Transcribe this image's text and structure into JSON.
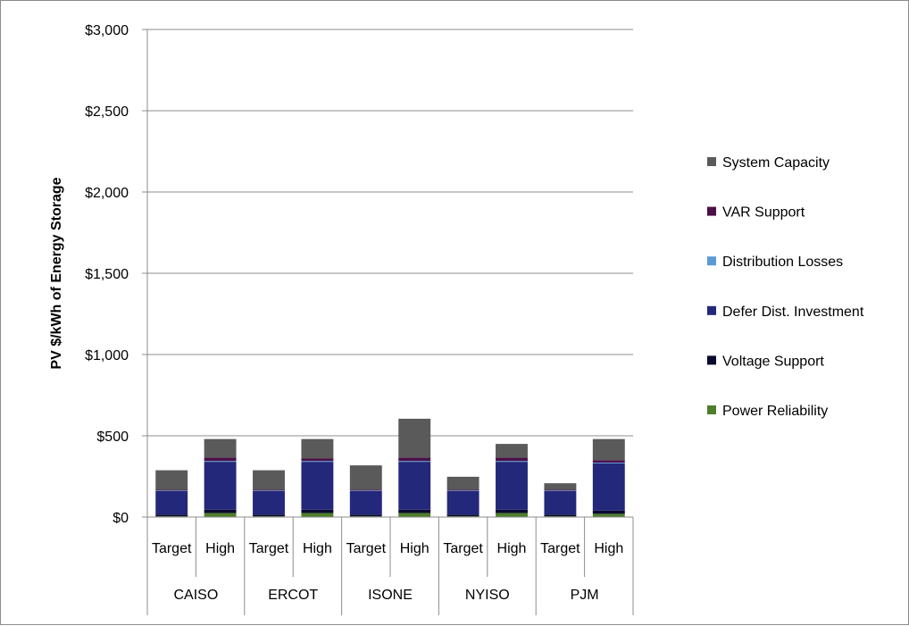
{
  "chart_data": {
    "type": "bar",
    "stacked": true,
    "title": "",
    "xlabel": "",
    "ylabel": "PV $/kWh of Energy Storage",
    "ylim": [
      0,
      3000
    ],
    "yticks": [
      0,
      500,
      1000,
      1500,
      2000,
      2500,
      3000
    ],
    "ytick_labels": [
      "$0",
      "$500",
      "$1,000",
      "$1,500",
      "$2,000",
      "$2,500",
      "$3,000"
    ],
    "grid": true,
    "legend_position": "right",
    "groups": [
      "CAISO",
      "ERCOT",
      "ISONE",
      "NYISO",
      "PJM"
    ],
    "categories": [
      "Target",
      "High",
      "Target",
      "High",
      "Target",
      "High",
      "Target",
      "High",
      "Target",
      "High"
    ],
    "series": [
      {
        "name": "Power Reliability",
        "color": "#4e7d2b",
        "values": [
          5,
          25,
          5,
          25,
          5,
          25,
          5,
          25,
          5,
          20
        ]
      },
      {
        "name": "Voltage Support",
        "color": "#0a0a2e",
        "values": [
          10,
          20,
          10,
          20,
          10,
          20,
          10,
          20,
          10,
          20
        ]
      },
      {
        "name": "Defer Dist. Investment",
        "color": "#24287a",
        "values": [
          145,
          295,
          145,
          295,
          145,
          295,
          145,
          295,
          145,
          290
        ]
      },
      {
        "name": "Distribution Losses",
        "color": "#5b9bd5",
        "values": [
          3,
          5,
          3,
          5,
          3,
          5,
          3,
          5,
          3,
          5
        ]
      },
      {
        "name": "VAR Support",
        "color": "#4b0f49",
        "values": [
          5,
          20,
          5,
          15,
          5,
          20,
          5,
          20,
          5,
          15
        ]
      },
      {
        "name": "System Capacity",
        "color": "#5a5a5a",
        "values": [
          120,
          115,
          120,
          120,
          150,
          240,
          80,
          85,
          40,
          130
        ]
      }
    ]
  }
}
